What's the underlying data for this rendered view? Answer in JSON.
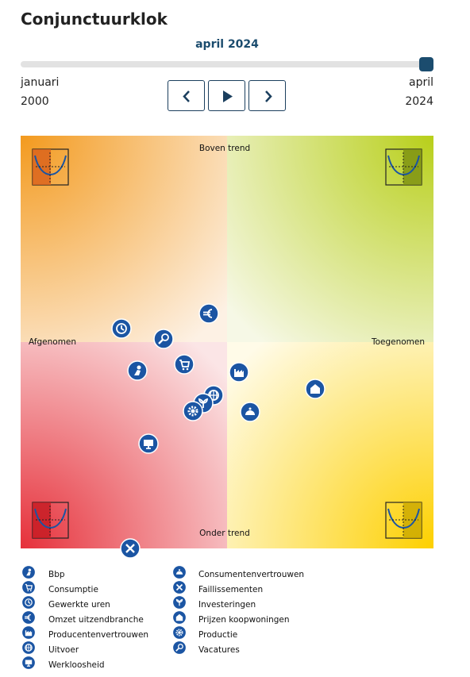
{
  "header": {
    "title": "Conjunctuurklok",
    "date_label": "april 2024"
  },
  "range": {
    "start_month": "januari",
    "start_year": "2000",
    "end_month": "april",
    "end_year": "2024"
  },
  "clock": {
    "top": "Boven trend",
    "bottom": "Onder trend",
    "left": "Afgenomen",
    "right": "Toegenomen"
  },
  "legend": [
    "Bbp",
    "Consumptie",
    "Gewerkte uren",
    "Omzet uitzendbranche",
    "Producentenvertrouwen",
    "Uitvoer",
    "Werkloosheid",
    "Consumentenvertrouwen",
    "Faillissementen",
    "Investeringen",
    "Prijzen koopwoningen",
    "Productie",
    "Vacatures"
  ]
}
